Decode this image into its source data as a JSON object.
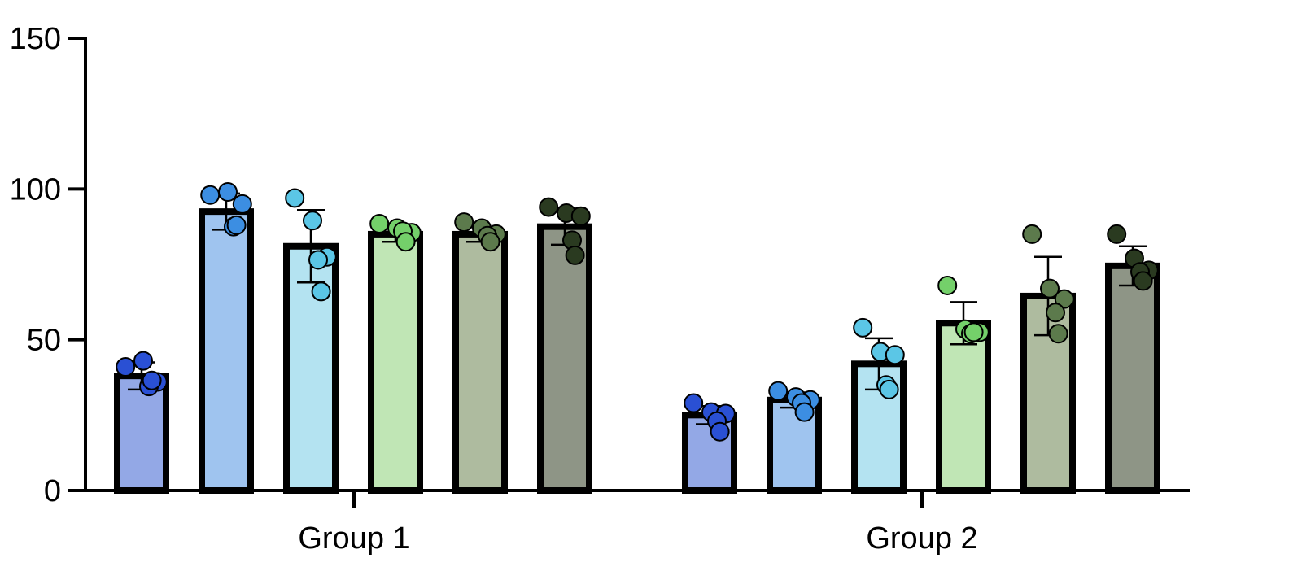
{
  "chart_data": {
    "type": "bar",
    "title": "",
    "xlabel": "",
    "ylabel": "",
    "ylim": [
      0,
      150
    ],
    "yticks": [
      "0",
      "50",
      "100",
      "150"
    ],
    "groups": [
      "Group 1",
      "Group 2"
    ],
    "series_colors": [
      "#93a8e6",
      "#9fc4ef",
      "#b4e3f1",
      "#c0e6b5",
      "#aebb9f",
      "#8e9586"
    ],
    "point_colors": [
      "#2a50d4",
      "#3c8ee2",
      "#5bc6e6",
      "#74d06a",
      "#5c7a4c",
      "#2a3a20"
    ],
    "bars": [
      {
        "group": "Group 1",
        "mean": 38,
        "sd": 4.5,
        "points": [
          41,
          43,
          36,
          34.5,
          36.5
        ]
      },
      {
        "group": "Group 1",
        "mean": 92.5,
        "sd": 6,
        "points": [
          98,
          99,
          95,
          87.5,
          88
        ]
      },
      {
        "group": "Group 1",
        "mean": 81,
        "sd": 12,
        "points": [
          97,
          89.5,
          77.5,
          76.5,
          66
        ]
      },
      {
        "group": "Group 1",
        "mean": 85,
        "sd": 2.5,
        "points": [
          88.5,
          87,
          85.5,
          86,
          82.5
        ]
      },
      {
        "group": "Group 1",
        "mean": 85,
        "sd": 2.5,
        "points": [
          89,
          87,
          85,
          84.5,
          82.5
        ]
      },
      {
        "group": "Group 1",
        "mean": 87.5,
        "sd": 6,
        "points": [
          94,
          92,
          91,
          83,
          78
        ]
      },
      {
        "group": "Group 2",
        "mean": 25,
        "sd": 3,
        "points": [
          29,
          26,
          25.5,
          23,
          19.5
        ]
      },
      {
        "group": "Group 2",
        "mean": 30,
        "sd": 2.5,
        "points": [
          33,
          31,
          30,
          29,
          26
        ]
      },
      {
        "group": "Group 2",
        "mean": 42,
        "sd": 8.5,
        "points": [
          54,
          46,
          45,
          35,
          33.5
        ]
      },
      {
        "group": "Group 2",
        "mean": 55.5,
        "sd": 7,
        "points": [
          68,
          53.5,
          52.5,
          52,
          52.5
        ]
      },
      {
        "group": "Group 2",
        "mean": 64.5,
        "sd": 13,
        "points": [
          85,
          67,
          63.5,
          59,
          52
        ]
      },
      {
        "group": "Group 2",
        "mean": 74.5,
        "sd": 6.5,
        "points": [
          85,
          77,
          73,
          72.5,
          69.5
        ]
      }
    ]
  }
}
